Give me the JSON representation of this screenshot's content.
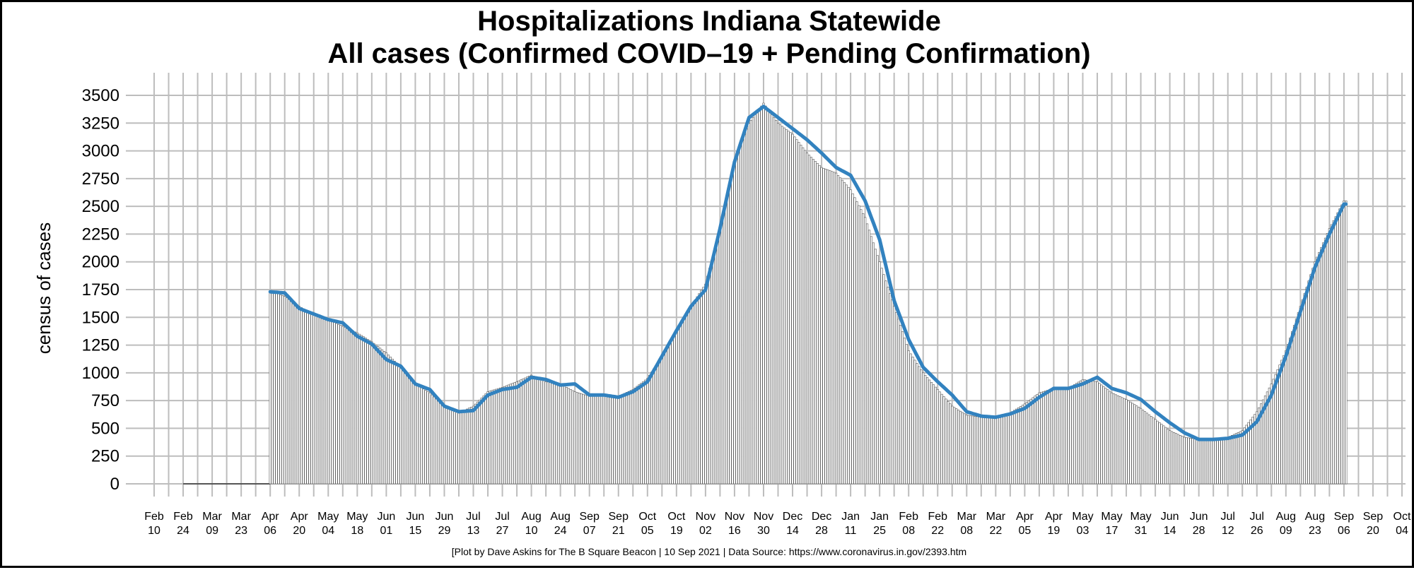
{
  "chart_data": {
    "type": "bar",
    "title": [
      "Hospitalizations Indiana Statewide",
      "All cases (Confirmed COVID–19 + Pending Confirmation)"
    ],
    "xlabel": "",
    "ylabel": "census of cases",
    "footer": "[Plot by Dave Askins for The B Square Beacon | 10 Sep 2021 | Data Source: https://www.coronavirus.in.gov/2393.htm",
    "xlim": [
      "2020-02-10",
      "2021-10-04"
    ],
    "ylim": [
      0,
      3500
    ],
    "yticks": [
      "0",
      "250",
      "500",
      "750",
      "1000",
      "1250",
      "1500",
      "1750",
      "2000",
      "2250",
      "2500",
      "2750",
      "3000",
      "3250",
      "3500"
    ],
    "xticks": [
      [
        "Feb",
        "10"
      ],
      [
        "Feb",
        "24"
      ],
      [
        "Mar",
        "09"
      ],
      [
        "Mar",
        "23"
      ],
      [
        "Apr",
        "06"
      ],
      [
        "Apr",
        "20"
      ],
      [
        "May",
        "04"
      ],
      [
        "May",
        "18"
      ],
      [
        "Jun",
        "01"
      ],
      [
        "Jun",
        "15"
      ],
      [
        "Jun",
        "29"
      ],
      [
        "Jul",
        "13"
      ],
      [
        "Jul",
        "27"
      ],
      [
        "Aug",
        "10"
      ],
      [
        "Aug",
        "24"
      ],
      [
        "Sep",
        "07"
      ],
      [
        "Sep",
        "21"
      ],
      [
        "Oct",
        "05"
      ],
      [
        "Oct",
        "19"
      ],
      [
        "Nov",
        "02"
      ],
      [
        "Nov",
        "16"
      ],
      [
        "Nov",
        "30"
      ],
      [
        "Dec",
        "14"
      ],
      [
        "Dec",
        "28"
      ],
      [
        "Jan",
        "11"
      ],
      [
        "Jan",
        "25"
      ],
      [
        "Feb",
        "08"
      ],
      [
        "Feb",
        "22"
      ],
      [
        "Mar",
        "08"
      ],
      [
        "Mar",
        "22"
      ],
      [
        "Apr",
        "05"
      ],
      [
        "Apr",
        "19"
      ],
      [
        "May",
        "03"
      ],
      [
        "May",
        "17"
      ],
      [
        "May",
        "31"
      ],
      [
        "Jun",
        "14"
      ],
      [
        "Jun",
        "28"
      ],
      [
        "Jul",
        "12"
      ],
      [
        "Jul",
        "26"
      ],
      [
        "Aug",
        "09"
      ],
      [
        "Aug",
        "23"
      ],
      [
        "Sep",
        "06"
      ],
      [
        "Sep",
        "20"
      ],
      [
        "Oct",
        "04"
      ]
    ],
    "grid": true,
    "legend": "none",
    "bar_color": "#555555",
    "line_color": "#3282bf",
    "series": [
      {
        "type": "bar",
        "x_start": "2020-04-06",
        "x_end": "2021-09-07",
        "values_sample_dates": [
          "2020-04-06",
          "2020-04-13",
          "2020-04-20",
          "2020-04-27",
          "2020-05-04",
          "2020-05-11",
          "2020-05-18",
          "2020-05-25",
          "2020-06-01",
          "2020-06-08",
          "2020-06-15",
          "2020-06-22",
          "2020-06-29",
          "2020-07-06",
          "2020-07-13",
          "2020-07-20",
          "2020-07-27",
          "2020-08-03",
          "2020-08-10",
          "2020-08-17",
          "2020-08-24",
          "2020-08-31",
          "2020-09-07",
          "2020-09-14",
          "2020-09-21",
          "2020-09-28",
          "2020-10-05",
          "2020-10-12",
          "2020-10-19",
          "2020-10-26",
          "2020-11-02",
          "2020-11-09",
          "2020-11-16",
          "2020-11-23",
          "2020-11-30",
          "2020-12-07",
          "2020-12-14",
          "2020-12-21",
          "2020-12-28",
          "2021-01-04",
          "2021-01-11",
          "2021-01-18",
          "2021-01-25",
          "2021-02-01",
          "2021-02-08",
          "2021-02-15",
          "2021-02-22",
          "2021-03-01",
          "2021-03-08",
          "2021-03-15",
          "2021-03-22",
          "2021-03-29",
          "2021-04-05",
          "2021-04-12",
          "2021-04-19",
          "2021-04-26",
          "2021-05-03",
          "2021-05-10",
          "2021-05-17",
          "2021-05-24",
          "2021-05-31",
          "2021-06-07",
          "2021-06-14",
          "2021-06-21",
          "2021-06-28",
          "2021-07-05",
          "2021-07-12",
          "2021-07-19",
          "2021-07-26",
          "2021-08-02",
          "2021-08-09",
          "2021-08-16",
          "2021-08-23",
          "2021-08-30",
          "2021-09-06"
        ],
        "values": [
          1740,
          1690,
          1600,
          1520,
          1480,
          1420,
          1360,
          1280,
          1180,
          1050,
          900,
          820,
          690,
          640,
          700,
          830,
          870,
          920,
          980,
          920,
          900,
          830,
          790,
          800,
          790,
          850,
          950,
          1150,
          1380,
          1600,
          1800,
          2300,
          2900,
          3250,
          3430,
          3250,
          3150,
          2980,
          2850,
          2800,
          2650,
          2400,
          2000,
          1600,
          1200,
          1000,
          850,
          700,
          620,
          600,
          590,
          640,
          720,
          820,
          860,
          860,
          940,
          920,
          820,
          760,
          680,
          580,
          480,
          420,
          400,
          400,
          420,
          480,
          650,
          900,
          1200,
          1600,
          2000,
          2300,
          2550
        ]
      },
      {
        "type": "line",
        "name": "",
        "values": [
          1730,
          1720,
          1580,
          1530,
          1480,
          1450,
          1330,
          1260,
          1120,
          1060,
          900,
          850,
          700,
          650,
          660,
          800,
          850,
          870,
          960,
          940,
          890,
          900,
          800,
          800,
          780,
          830,
          920,
          1150,
          1380,
          1600,
          1750,
          2300,
          2900,
          3300,
          3400,
          3300,
          3200,
          3100,
          2980,
          2850,
          2780,
          2550,
          2200,
          1650,
          1300,
          1050,
          920,
          800,
          650,
          610,
          600,
          630,
          680,
          780,
          860,
          860,
          900,
          960,
          860,
          820,
          760,
          650,
          550,
          460,
          400,
          400,
          410,
          440,
          560,
          800,
          1150,
          1550,
          1950,
          2250,
          2520
        ]
      }
    ]
  }
}
